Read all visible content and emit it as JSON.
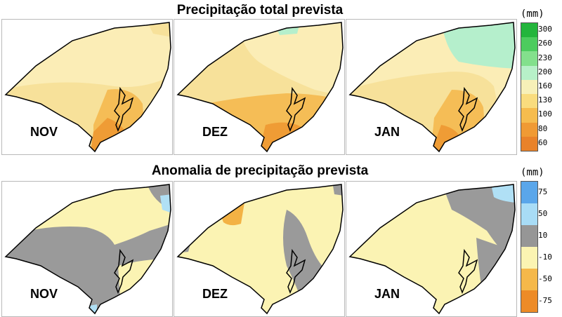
{
  "top": {
    "title": "Precipitação total prevista",
    "unit": "(mm)",
    "legend_ticks": [
      "300",
      "260",
      "230",
      "200",
      "160",
      "130",
      "100",
      "80",
      "60"
    ],
    "legend_colors": [
      "#23b53c",
      "#4ccc5e",
      "#83e08c",
      "#b7f0c8",
      "#f7f0b8",
      "#f9dc7e",
      "#f6bc4e",
      "#f09a34",
      "#e9822a"
    ],
    "panels": [
      {
        "month": "NOV"
      },
      {
        "month": "DEZ"
      },
      {
        "month": "JAN"
      }
    ]
  },
  "bottom": {
    "title": "Anomalia de precipitação prevista",
    "unit": "(mm)",
    "legend_ticks": [
      "75",
      "50",
      "10",
      "-10",
      "-50",
      "-75"
    ],
    "legend_colors": [
      "#5aa6ea",
      "#a8dcf6",
      "#969696",
      "#fbf4b2",
      "#f5b84a",
      "#ed8b27"
    ],
    "panels": [
      {
        "month": "NOV"
      },
      {
        "month": "DEZ"
      },
      {
        "month": "JAN"
      }
    ]
  },
  "colors": {
    "top_base": "#fbedb6",
    "top_mid": "#f7e19a",
    "top_orange": "#f5bd56",
    "top_deep": "#ef9c35",
    "top_green": "#b5efcc",
    "bot_yellow": "#fbf3b3",
    "bot_gray": "#9a9a9a",
    "bot_blue": "#b0e0f5",
    "bot_orange": "#f3b244"
  }
}
